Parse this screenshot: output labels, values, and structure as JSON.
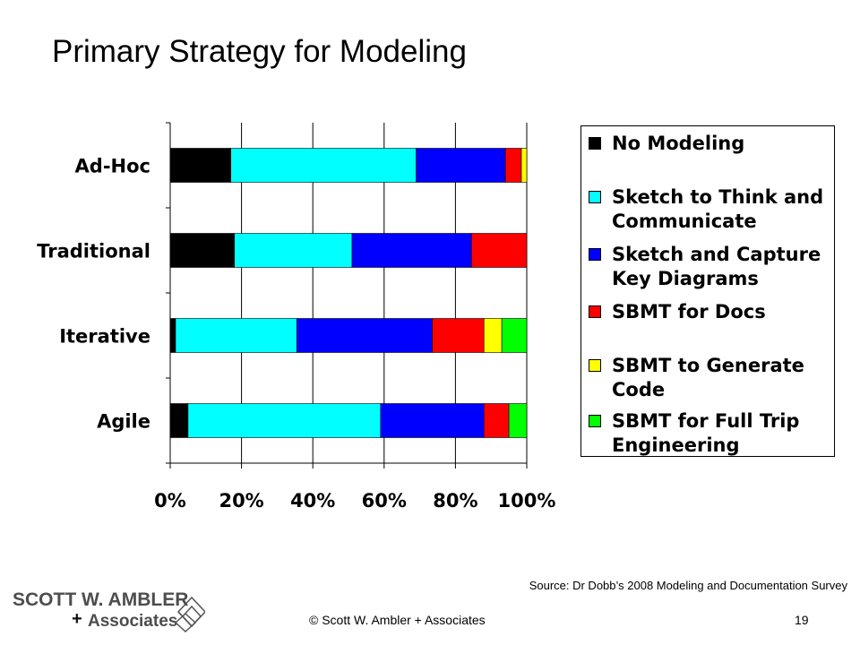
{
  "slide": {
    "title": "Primary Strategy for Modeling",
    "source": "Source: Dr Dobb’s 2008 Modeling and Documentation Survey",
    "copyright": "© Scott W. Ambler + Associates",
    "page_number": "19"
  },
  "logo": {
    "line1": "SCOTT W. AMBLER",
    "plus": "+",
    "line2": "Associates"
  },
  "colors": {
    "No Modeling": "#000000",
    "Sketch to Think and Communicate": "#00ffff",
    "Sketch and Capture Key Diagrams": "#0000ff",
    "SBMT for Docs": "#ff0000",
    "SBMT to Generate Code": "#ffff00",
    "SBMT for Full Trip Engineering": "#00ff00"
  },
  "legend": {
    "items": [
      {
        "lines": [
          "No Modeling"
        ],
        "series": "No Modeling"
      },
      {
        "lines": [
          "Sketch to Think and",
          "Communicate"
        ],
        "series": "Sketch to Think and Communicate"
      },
      {
        "lines": [
          "Sketch and Capture",
          "Key Diagrams"
        ],
        "series": "Sketch and Capture Key Diagrams"
      },
      {
        "lines": [
          "SBMT for Docs"
        ],
        "series": "SBMT for Docs"
      },
      {
        "lines": [
          "SBMT to Generate",
          "Code"
        ],
        "series": "SBMT to Generate Code"
      },
      {
        "lines": [
          "SBMT for Full Trip",
          "Engineering"
        ],
        "series": "SBMT for Full Trip Engineering"
      }
    ]
  },
  "chart_data": {
    "type": "bar",
    "orientation": "horizontal",
    "stacked": "percent",
    "title": "",
    "xlabel": "",
    "ylabel": "",
    "categories": [
      "Ad-Hoc",
      "Traditional",
      "Iterative",
      "Agile"
    ],
    "x_ticks": [
      "0%",
      "20%",
      "40%",
      "60%",
      "80%",
      "100%"
    ],
    "xlim": [
      0,
      100
    ],
    "grid": "vertical",
    "legend_position": "right",
    "series": [
      {
        "name": "No Modeling",
        "values": [
          17,
          18,
          1.5,
          5
        ]
      },
      {
        "name": "Sketch to Think and Communicate",
        "values": [
          52,
          33,
          34,
          54
        ]
      },
      {
        "name": "Sketch and Capture Key Diagrams",
        "values": [
          25,
          33.5,
          38,
          29
        ]
      },
      {
        "name": "SBMT for Docs",
        "values": [
          4.5,
          15.5,
          14.5,
          7
        ]
      },
      {
        "name": "SBMT to Generate Code",
        "values": [
          1.5,
          0,
          5,
          0
        ]
      },
      {
        "name": "SBMT for Full Trip Engineering",
        "values": [
          0,
          0,
          7,
          5
        ]
      }
    ]
  }
}
